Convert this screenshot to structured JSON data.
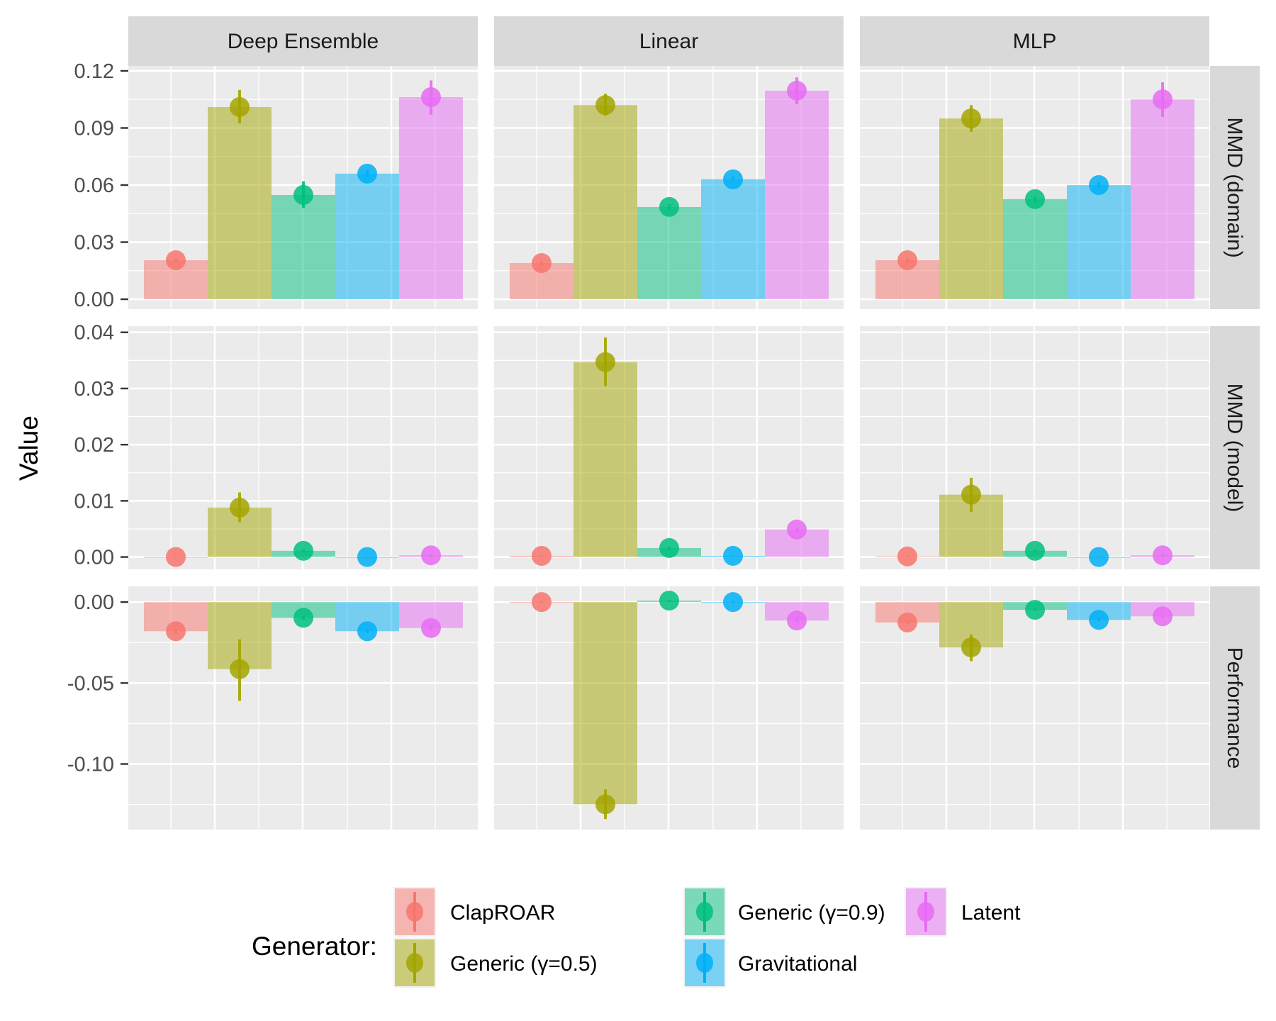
{
  "chart_data": {
    "type": "bar",
    "title": "",
    "xlabel": "",
    "ylabel": "Value",
    "grid": true,
    "legend": {
      "title": "Generator:",
      "position": "bottom",
      "entries": [
        "ClapROAR",
        "Generic (γ=0.5)",
        "Generic (γ=0.9)",
        "Gravitational",
        "Latent"
      ]
    },
    "series": [
      {
        "name": "ClapROAR",
        "color": "#F8766D"
      },
      {
        "name": "Generic (γ=0.5)",
        "color": "#A3A500"
      },
      {
        "name": "Generic (γ=0.9)",
        "color": "#00BF7D"
      },
      {
        "name": "Gravitational",
        "color": "#00B0F6"
      },
      {
        "name": "Latent",
        "color": "#E76BF3"
      }
    ],
    "columns": [
      "Deep Ensemble",
      "Linear",
      "MLP"
    ],
    "rows": [
      {
        "name": "MMD (domain)",
        "ylim": [
          -0.0052,
          0.1226
        ],
        "major_ticks": [
          0.0,
          0.03,
          0.06,
          0.09,
          0.12
        ],
        "tick_labels": [
          "0.00",
          "0.03",
          "0.06",
          "0.09",
          "0.12"
        ],
        "minor_ticks": [
          0.015,
          0.045,
          0.075,
          0.105
        ]
      },
      {
        "name": "MMD (model)",
        "ylim": [
          -0.0022,
          0.0411
        ],
        "major_ticks": [
          0.0,
          0.01,
          0.02,
          0.03,
          0.04
        ],
        "tick_labels": [
          "0.00",
          "0.01",
          "0.02",
          "0.03",
          "0.04"
        ],
        "minor_ticks": [
          0.005,
          0.015,
          0.025,
          0.035
        ]
      },
      {
        "name": "Performance",
        "ylim": [
          -0.1405,
          0.0097
        ],
        "major_ticks": [
          0.0,
          -0.05,
          -0.1
        ],
        "tick_labels": [
          "0.00",
          "-0.05",
          "-0.10"
        ],
        "minor_ticks": [
          -0.025,
          -0.075,
          -0.125
        ]
      }
    ],
    "panels": [
      {
        "row": "MMD (domain)",
        "column": "Deep Ensemble",
        "values": [
          0.0205,
          0.101,
          0.0548,
          0.066,
          0.1062
        ],
        "err_low": [
          0.0195,
          0.0924,
          0.048,
          0.064,
          0.097
        ],
        "err_high": [
          0.0215,
          0.11,
          0.062,
          0.068,
          0.115
        ]
      },
      {
        "row": "MMD (domain)",
        "column": "Linear",
        "values": [
          0.019,
          0.102,
          0.0485,
          0.063,
          0.1096
        ],
        "err_low": [
          0.018,
          0.0965,
          0.047,
          0.0615,
          0.1025
        ],
        "err_high": [
          0.02,
          0.108,
          0.05,
          0.0645,
          0.1166
        ]
      },
      {
        "row": "MMD (domain)",
        "column": "MLP",
        "values": [
          0.0205,
          0.095,
          0.0526,
          0.06,
          0.105
        ],
        "err_low": [
          0.0195,
          0.088,
          0.051,
          0.0585,
          0.0958
        ],
        "err_high": [
          0.0215,
          0.102,
          0.0542,
          0.0615,
          0.114
        ]
      },
      {
        "row": "MMD (model)",
        "column": "Deep Ensemble",
        "values": [
          0.0,
          0.0088,
          0.0011,
          0.0,
          0.0003
        ],
        "err_low": [
          -0.0001,
          0.0062,
          0.0008,
          -0.0001,
          0.0001
        ],
        "err_high": [
          0.0001,
          0.0115,
          0.0014,
          0.0001,
          0.0005
        ]
      },
      {
        "row": "MMD (model)",
        "column": "Linear",
        "values": [
          0.0002,
          0.0347,
          0.0016,
          0.0002,
          0.0049
        ],
        "err_low": [
          0.0001,
          0.0304,
          0.0013,
          0.0001,
          0.0046
        ],
        "err_high": [
          0.0003,
          0.0391,
          0.0019,
          0.0003,
          0.0052
        ]
      },
      {
        "row": "MMD (model)",
        "column": "MLP",
        "values": [
          0.0001,
          0.0111,
          0.0011,
          0.0,
          0.0003
        ],
        "err_low": [
          0.0,
          0.008,
          0.0008,
          -0.0001,
          0.0001
        ],
        "err_high": [
          0.0002,
          0.0141,
          0.0014,
          0.0001,
          0.0005
        ]
      },
      {
        "row": "Performance",
        "column": "Deep Ensemble",
        "values": [
          -0.018,
          -0.0414,
          -0.0097,
          -0.018,
          -0.016
        ],
        "err_low": [
          -0.0195,
          -0.061,
          -0.011,
          -0.019,
          -0.0175
        ],
        "err_high": [
          -0.0165,
          -0.023,
          -0.0085,
          -0.017,
          -0.0145
        ]
      },
      {
        "row": "Performance",
        "column": "Linear",
        "values": [
          0.0,
          -0.1249,
          0.0009,
          0.0,
          -0.0114
        ],
        "err_low": [
          -0.0005,
          -0.134,
          0.0002,
          -0.0005,
          -0.0125
        ],
        "err_high": [
          0.0005,
          -0.1157,
          0.0016,
          0.0005,
          -0.0103
        ]
      },
      {
        "row": "Performance",
        "column": "MLP",
        "values": [
          -0.0126,
          -0.028,
          -0.0048,
          -0.011,
          -0.0088
        ],
        "err_low": [
          -0.0135,
          -0.0365,
          -0.0055,
          -0.0118,
          -0.0096
        ],
        "err_high": [
          -0.0117,
          -0.02,
          -0.0041,
          -0.0102,
          -0.008
        ]
      }
    ]
  }
}
